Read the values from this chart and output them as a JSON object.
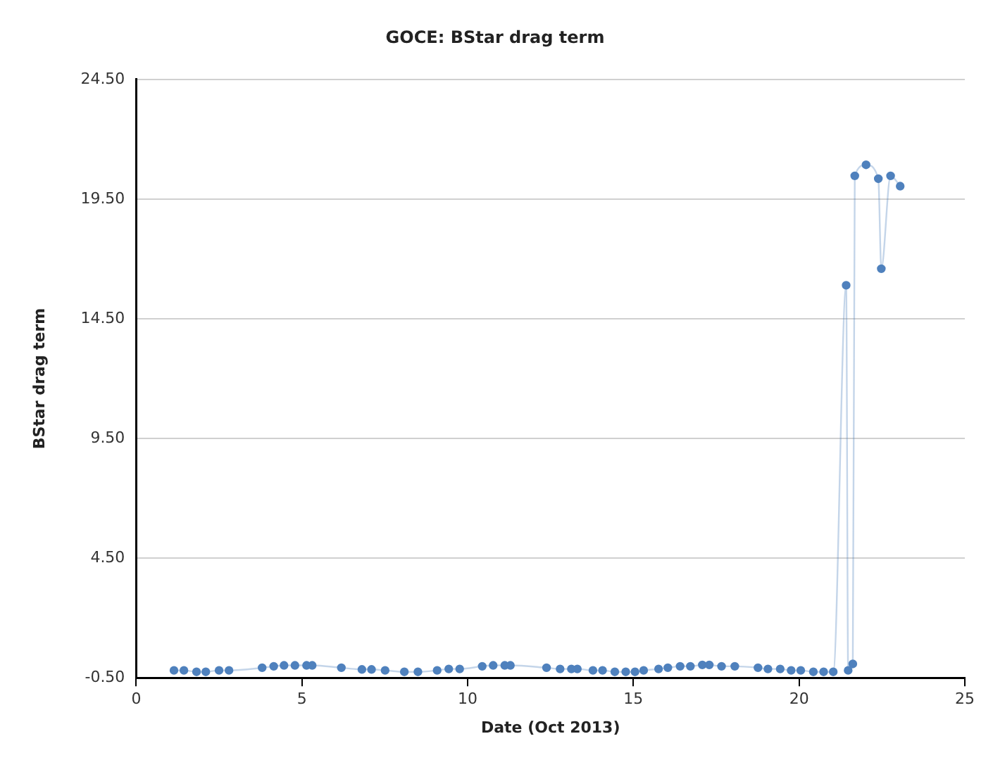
{
  "chart_data": {
    "type": "line",
    "title": "GOCE: BStar drag term",
    "xlabel": "Date (Oct 2013)",
    "ylabel": "BStar drag term",
    "xlim": [
      0,
      25
    ],
    "xticks": [
      0,
      5,
      10,
      15,
      20,
      25
    ],
    "ylim": [
      -0.5,
      24.5
    ],
    "yticks": [
      {
        "value": -0.5,
        "label": "-0.50"
      },
      {
        "value": 4.5,
        "label": "4.50"
      },
      {
        "value": 9.5,
        "label": "9.50"
      },
      {
        "value": 14.5,
        "label": "14.50"
      },
      {
        "value": 19.5,
        "label": "19.50"
      },
      {
        "value": 24.5,
        "label": "24.50"
      }
    ],
    "grid": "y",
    "legend": false,
    "marker": "circle",
    "line_style": "solid",
    "series": [
      {
        "color": "#4f81bd",
        "x": [
          1.14,
          1.44,
          1.82,
          2.1,
          2.5,
          2.8,
          3.8,
          4.15,
          4.46,
          4.79,
          5.14,
          5.31,
          6.19,
          6.81,
          7.1,
          7.51,
          8.09,
          8.5,
          9.08,
          9.43,
          9.76,
          10.44,
          10.77,
          11.12,
          11.29,
          12.38,
          12.79,
          13.13,
          13.31,
          13.78,
          14.07,
          14.44,
          14.77,
          15.05,
          15.31,
          15.76,
          16.04,
          16.41,
          16.72,
          17.08,
          17.29,
          17.66,
          18.06,
          18.76,
          19.06,
          19.43,
          19.76,
          20.05,
          20.43,
          20.74,
          21.03,
          21.42,
          21.48,
          21.62,
          21.68,
          22.02,
          22.39,
          22.48,
          22.76,
          23.05
        ],
        "values": [
          -0.19,
          -0.19,
          -0.25,
          -0.25,
          -0.19,
          -0.19,
          -0.08,
          -0.02,
          0.02,
          0.02,
          0.02,
          0.02,
          -0.08,
          -0.15,
          -0.15,
          -0.19,
          -0.25,
          -0.25,
          -0.19,
          -0.13,
          -0.13,
          -0.02,
          0.02,
          0.02,
          0.02,
          -0.08,
          -0.13,
          -0.13,
          -0.13,
          -0.19,
          -0.19,
          -0.25,
          -0.25,
          -0.25,
          -0.19,
          -0.13,
          -0.08,
          -0.02,
          -0.02,
          0.04,
          0.04,
          -0.02,
          -0.02,
          -0.08,
          -0.13,
          -0.13,
          -0.19,
          -0.19,
          -0.25,
          -0.25,
          -0.25,
          15.9,
          -0.19,
          0.08,
          20.47,
          20.93,
          20.35,
          16.59,
          20.47,
          20.04
        ]
      }
    ]
  }
}
